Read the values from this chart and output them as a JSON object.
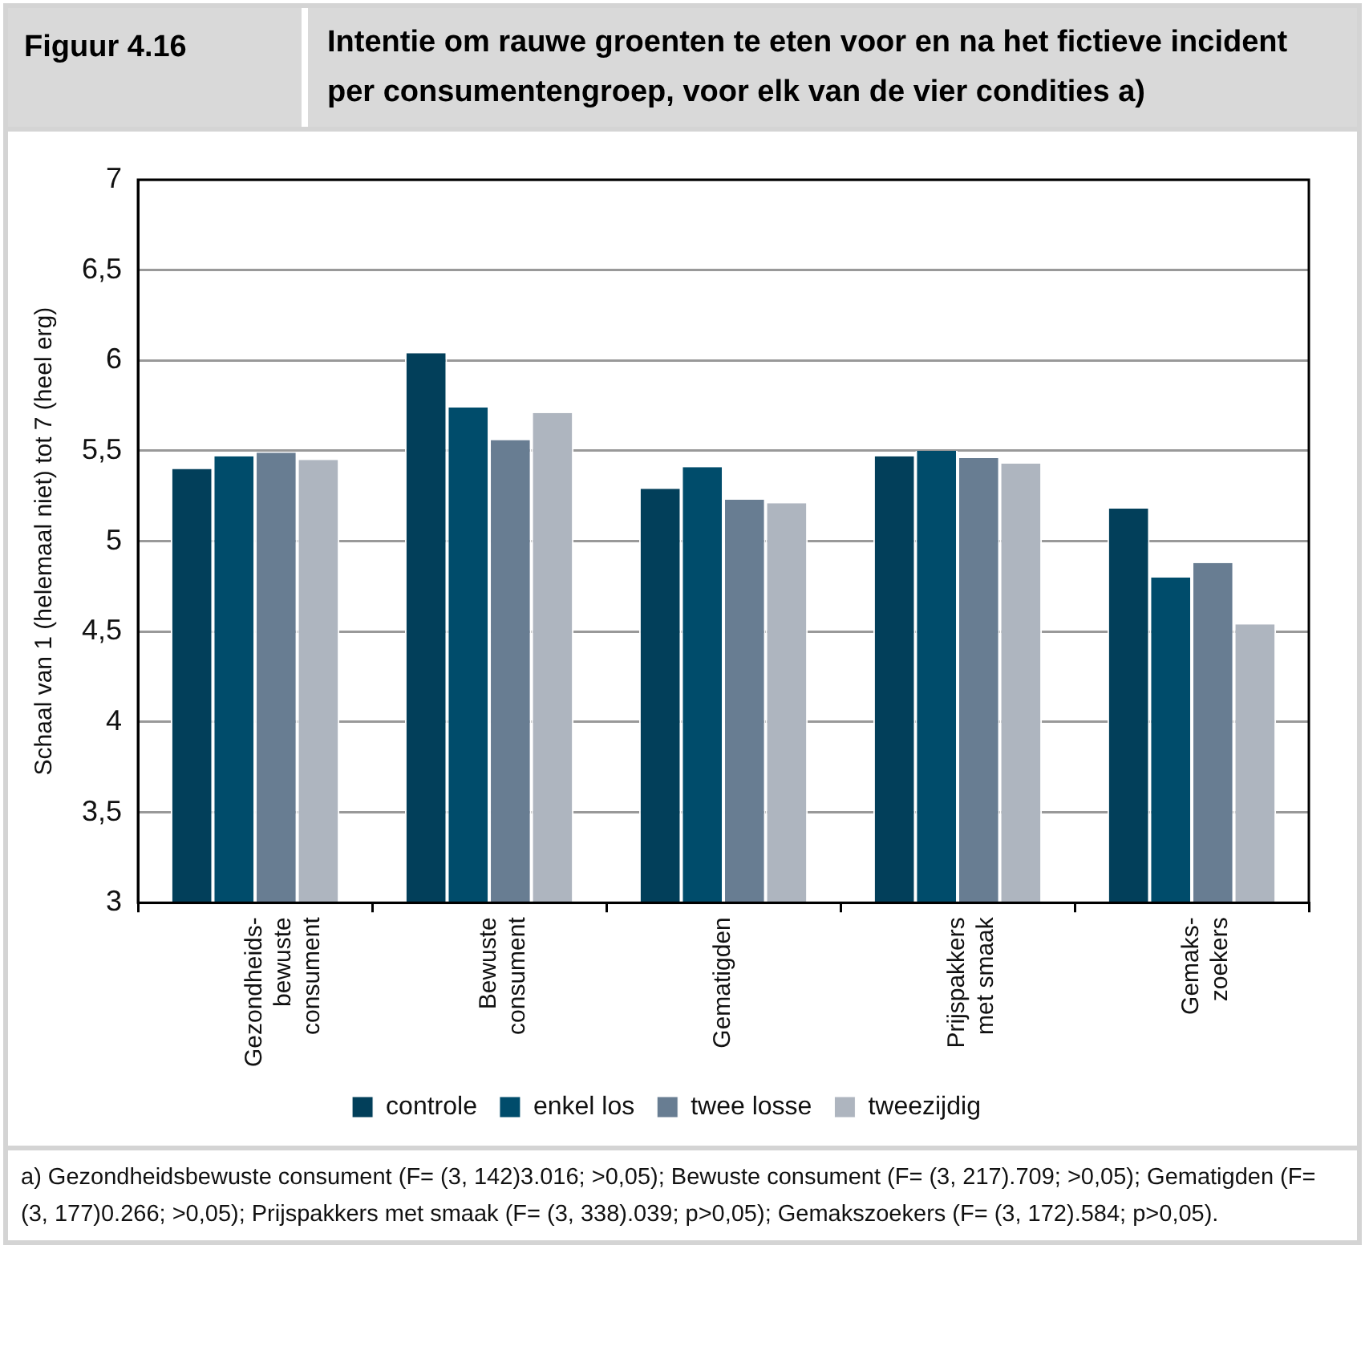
{
  "chart_data": {
    "type": "bar",
    "title": "Figuur 4.16",
    "subtitle": "Intentie om rauwe groenten te eten voor en na het fictieve incident per consumentengroep, voor elk van de vier condities a)",
    "ylabel": "Schaal van 1 (helemaal niet) tot 7 (heel erg)",
    "categories": [
      "Gezondheids-\nbewuste\nconsument",
      "Bewuste\nconsument",
      "Gematigden",
      "Prijspakkers\nmet smaak",
      "Gemaks-\nzoekers"
    ],
    "series": [
      {
        "name": "controle",
        "color": "#023f5a",
        "values": [
          5.4,
          6.04,
          5.29,
          5.47,
          5.18
        ]
      },
      {
        "name": "enkel los",
        "color": "#004c6b",
        "values": [
          5.47,
          5.74,
          5.41,
          5.5,
          4.8
        ]
      },
      {
        "name": "twee losse",
        "color": "#687d92",
        "values": [
          5.49,
          5.56,
          5.23,
          5.46,
          4.88
        ]
      },
      {
        "name": "tweezijdig",
        "color": "#aeb5bf",
        "values": [
          5.45,
          5.71,
          5.21,
          5.43,
          4.54
        ]
      }
    ],
    "ylim": [
      3,
      7
    ],
    "yticks": [
      {
        "value": 3,
        "label": "3"
      },
      {
        "value": 3.5,
        "label": "3,5"
      },
      {
        "value": 4,
        "label": "4"
      },
      {
        "value": 4.5,
        "label": "4,5"
      },
      {
        "value": 5,
        "label": "5"
      },
      {
        "value": 5.5,
        "label": "5,5"
      },
      {
        "value": 6,
        "label": "6"
      },
      {
        "value": 6.5,
        "label": "6,5"
      },
      {
        "value": 7,
        "label": "7"
      }
    ],
    "grid": "y",
    "legend": "bottom",
    "annotations": [
      "a) Gezondheidsbewuste consument (F= (3, 142)3.016; >0,05); Bewuste consument (F= (3, 217).709; >0,05); Gematigden (F= (3, 177)0.266; >0,05); Prijspakkers met smaak (F= (3, 338).039; p>0,05); Gemakszoekers (F= (3, 172).584; p>0,05)."
    ]
  }
}
